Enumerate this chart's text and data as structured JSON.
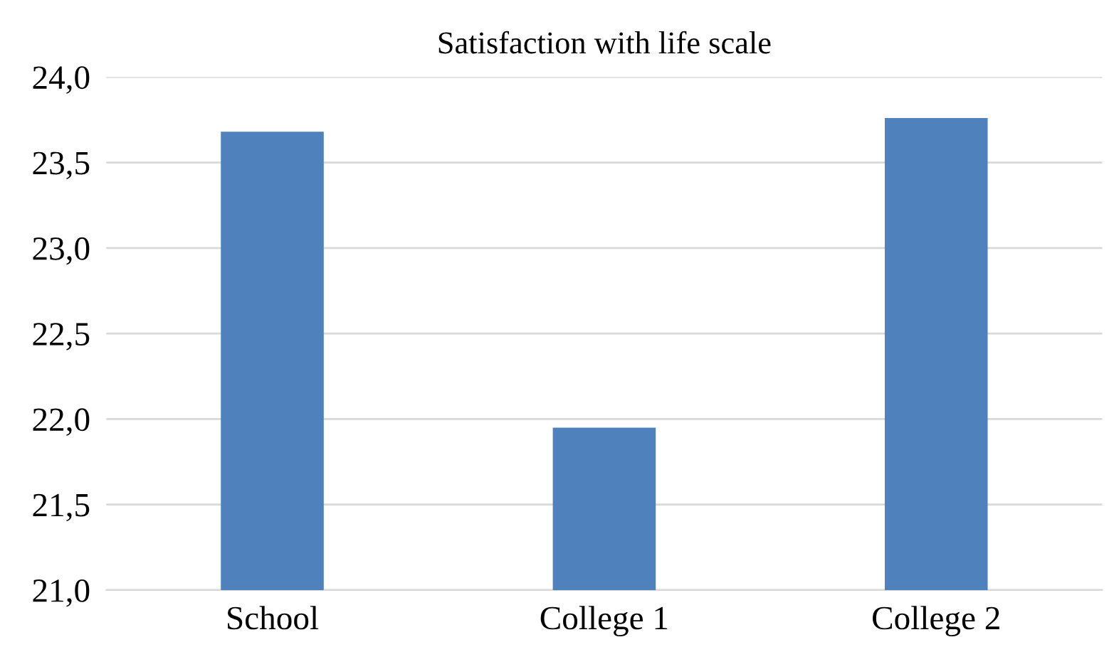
{
  "chart_data": {
    "type": "bar",
    "title": "Satisfaction with life scale",
    "categories": [
      "School",
      "College 1",
      "College 2"
    ],
    "values": [
      23.68,
      21.95,
      23.76
    ],
    "color": "#4f81bd",
    "ylim": [
      21.0,
      24.0
    ],
    "yticks": [
      {
        "value": 21.0,
        "label": "21,0"
      },
      {
        "value": 21.5,
        "label": "21,5"
      },
      {
        "value": 22.0,
        "label": "22,0"
      },
      {
        "value": 22.5,
        "label": "22,5"
      },
      {
        "value": 23.0,
        "label": "23,0"
      },
      {
        "value": 23.5,
        "label": "23,5"
      },
      {
        "value": 24.0,
        "label": "24,0"
      }
    ],
    "grid": "y",
    "legend": false
  }
}
